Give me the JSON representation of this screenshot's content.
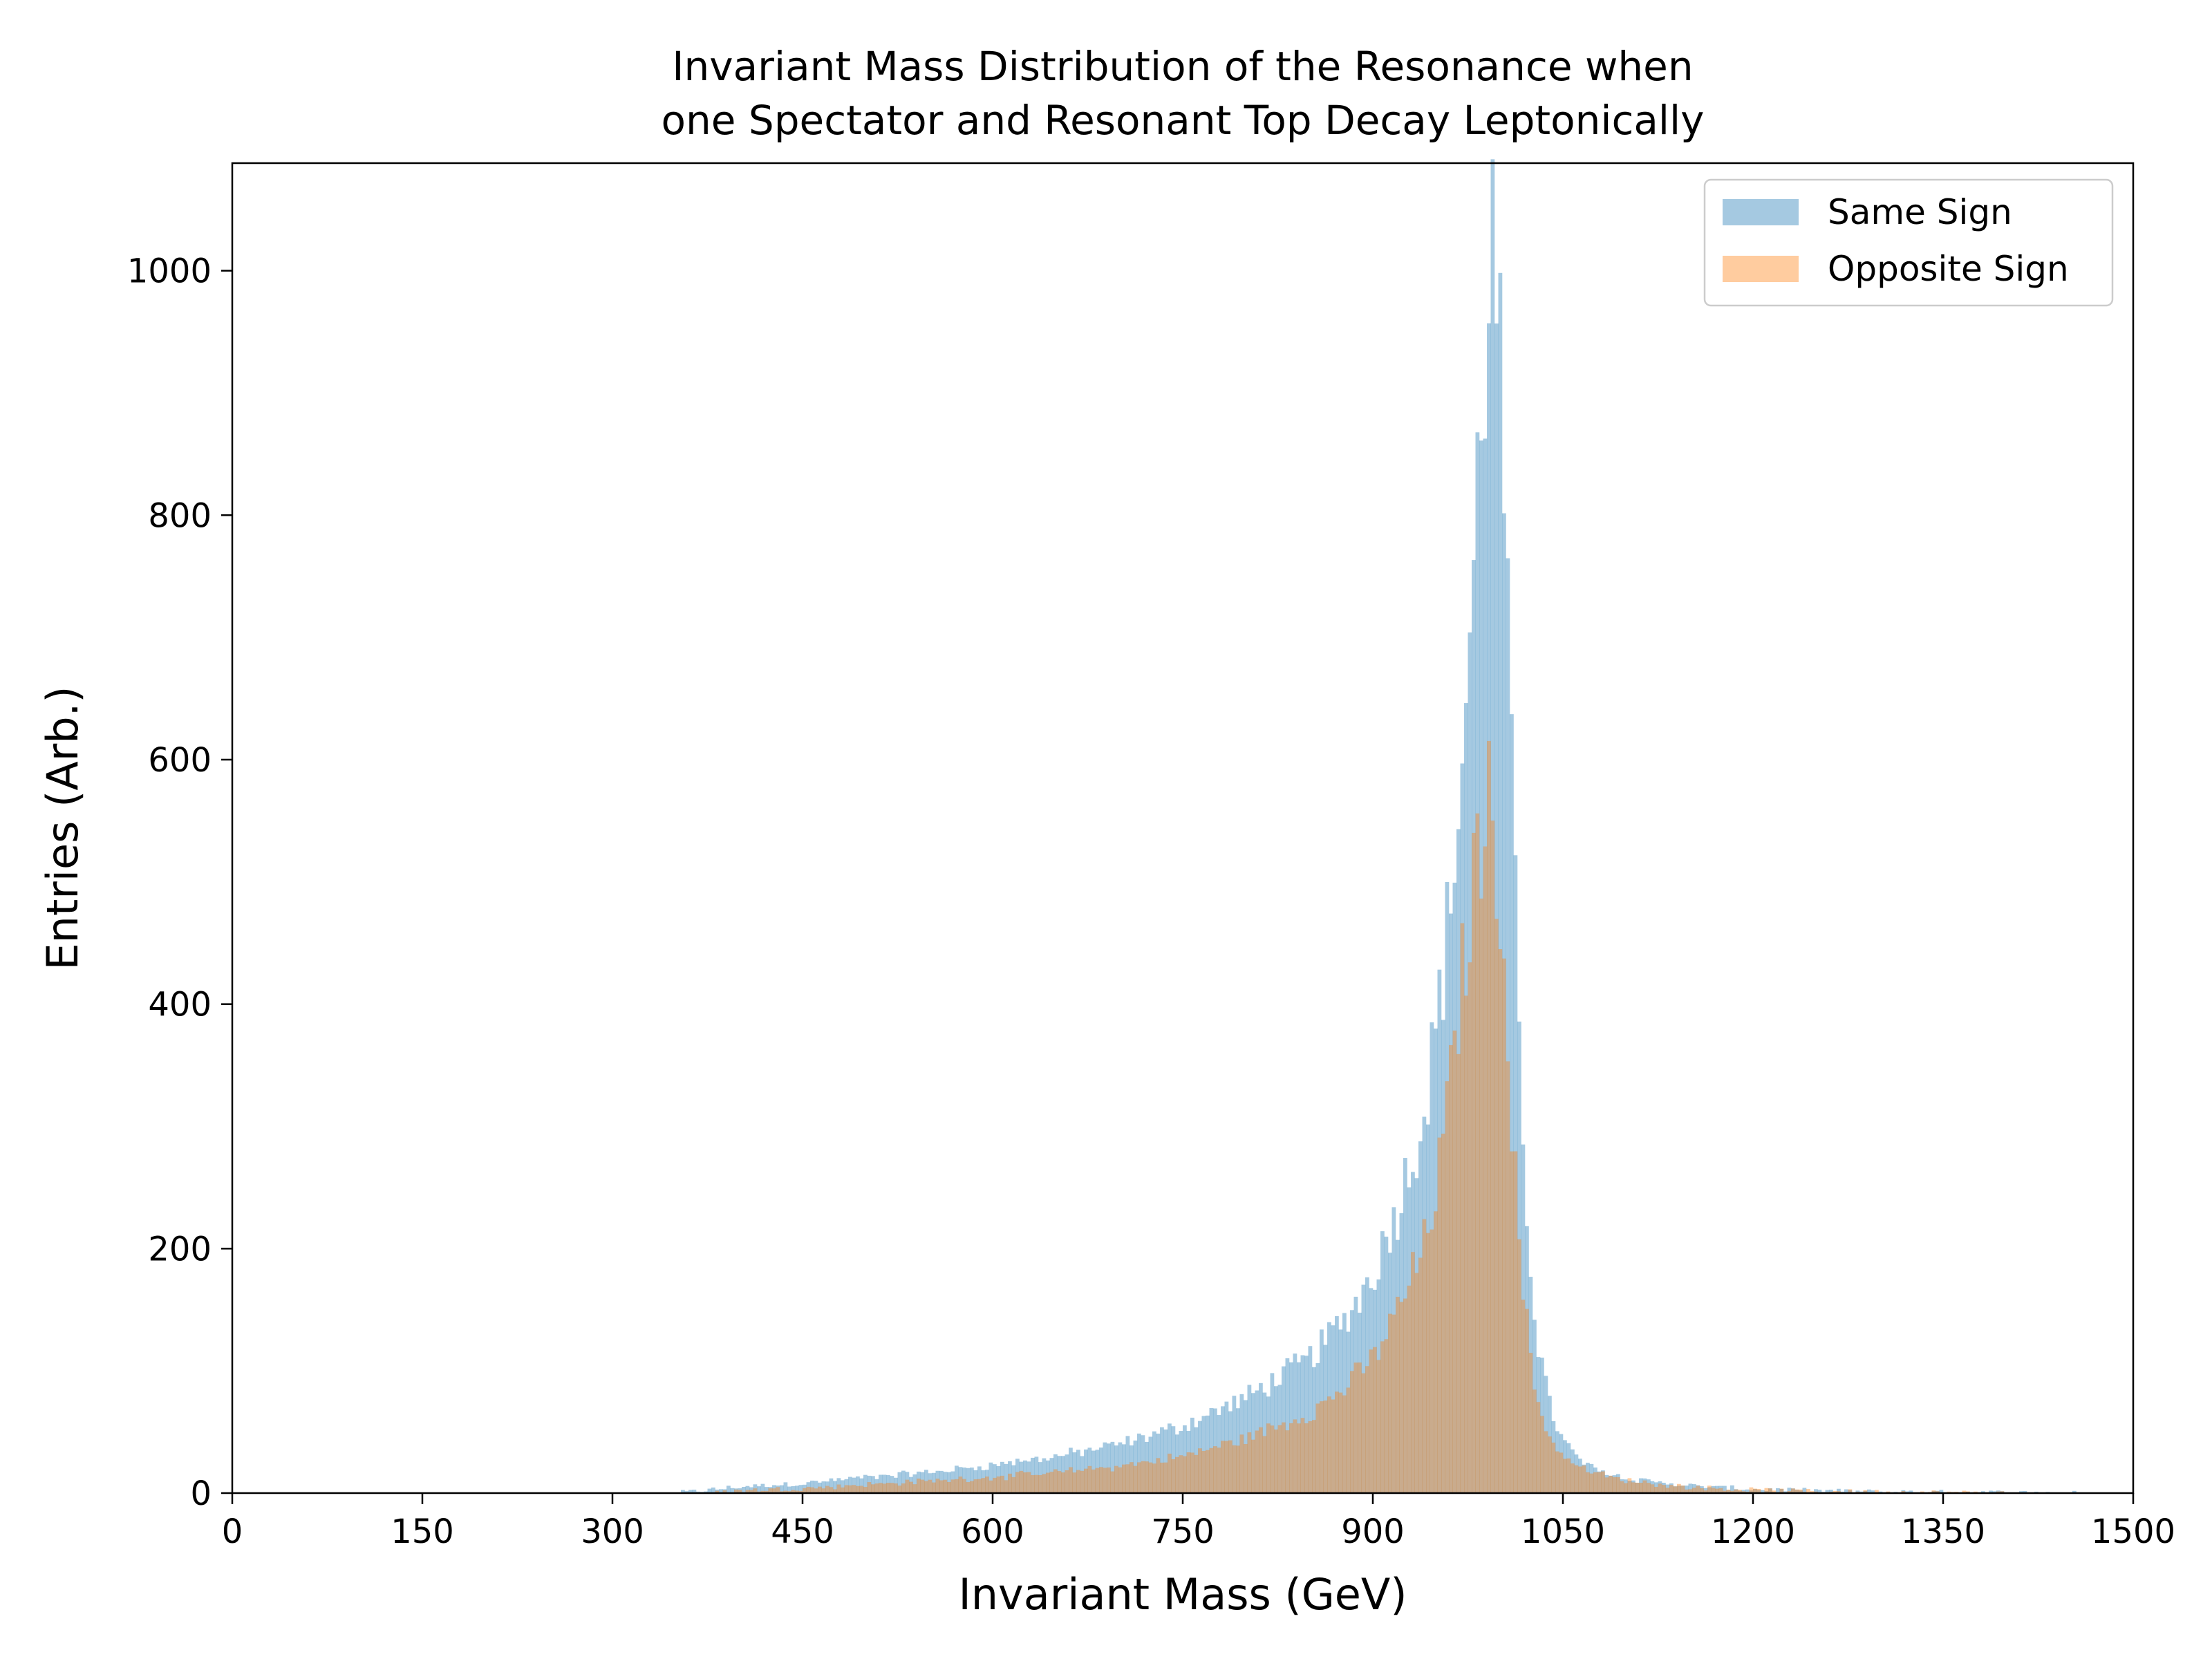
{
  "chart_data": {
    "type": "histogram",
    "title_lines": [
      "Invariant Mass Distribution of the Resonance when",
      "one Spectator and Resonant Top Decay Leptonically"
    ],
    "xlabel": "Invariant Mass (GeV)",
    "ylabel": "Entries (Arb.)",
    "xlim": [
      0,
      1500
    ],
    "ylim": [
      0,
      1088
    ],
    "x_ticks": [
      0,
      150,
      300,
      450,
      600,
      750,
      900,
      1050,
      1200,
      1350,
      1500
    ],
    "y_ticks": [
      0,
      200,
      400,
      600,
      800,
      1000
    ],
    "bin_width_gev": 3,
    "grid": false,
    "legend_position": "top-right",
    "series": [
      {
        "name": "Same Sign",
        "color": "#1f77b4",
        "alpha": 0.4,
        "profile": [
          [
            350,
            0
          ],
          [
            380,
            3
          ],
          [
            400,
            5
          ],
          [
            450,
            8
          ],
          [
            500,
            13
          ],
          [
            550,
            17
          ],
          [
            600,
            23
          ],
          [
            650,
            30
          ],
          [
            700,
            40
          ],
          [
            750,
            55
          ],
          [
            800,
            78
          ],
          [
            850,
            110
          ],
          [
            880,
            145
          ],
          [
            900,
            180
          ],
          [
            920,
            235
          ],
          [
            940,
            310
          ],
          [
            950,
            380
          ],
          [
            960,
            470
          ],
          [
            970,
            590
          ],
          [
            980,
            760
          ],
          [
            985,
            880
          ],
          [
            990,
            960
          ],
          [
            993,
            1035
          ],
          [
            996,
            1010
          ],
          [
            1000,
            920
          ],
          [
            1005,
            780
          ],
          [
            1010,
            560
          ],
          [
            1015,
            390
          ],
          [
            1020,
            260
          ],
          [
            1025,
            180
          ],
          [
            1030,
            125
          ],
          [
            1040,
            70
          ],
          [
            1050,
            42
          ],
          [
            1070,
            22
          ],
          [
            1100,
            12
          ],
          [
            1150,
            6
          ],
          [
            1200,
            3
          ],
          [
            1250,
            2
          ],
          [
            1300,
            1
          ],
          [
            1400,
            0.5
          ],
          [
            1460,
            0
          ]
        ]
      },
      {
        "name": "Opposite Sign",
        "color": "#ff7f0e",
        "alpha": 0.4,
        "profile": [
          [
            380,
            0
          ],
          [
            400,
            2
          ],
          [
            450,
            4
          ],
          [
            500,
            7
          ],
          [
            550,
            10
          ],
          [
            600,
            13
          ],
          [
            650,
            17
          ],
          [
            700,
            22
          ],
          [
            750,
            30
          ],
          [
            800,
            45
          ],
          [
            850,
            65
          ],
          [
            880,
            88
          ],
          [
            900,
            110
          ],
          [
            920,
            150
          ],
          [
            940,
            200
          ],
          [
            950,
            250
          ],
          [
            960,
            320
          ],
          [
            970,
            420
          ],
          [
            980,
            500
          ],
          [
            985,
            540
          ],
          [
            990,
            565
          ],
          [
            995,
            545
          ],
          [
            1000,
            500
          ],
          [
            1005,
            420
          ],
          [
            1010,
            300
          ],
          [
            1015,
            210
          ],
          [
            1020,
            150
          ],
          [
            1025,
            105
          ],
          [
            1030,
            75
          ],
          [
            1040,
            45
          ],
          [
            1050,
            30
          ],
          [
            1070,
            18
          ],
          [
            1100,
            10
          ],
          [
            1150,
            5
          ],
          [
            1200,
            2.5
          ],
          [
            1250,
            1.5
          ],
          [
            1300,
            1
          ],
          [
            1400,
            0
          ]
        ]
      }
    ]
  }
}
